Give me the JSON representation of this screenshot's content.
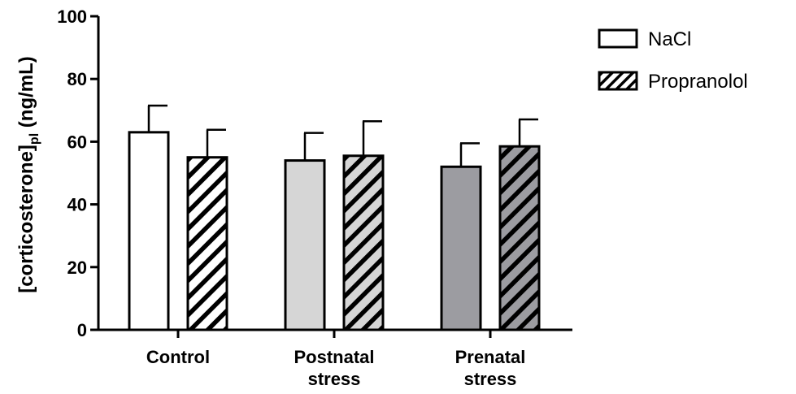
{
  "chart_data": {
    "type": "bar",
    "title": "",
    "ylabel": {
      "main": "[corticosterone]",
      "subscript": "pl",
      "unit": " (ng/mL)"
    },
    "xlabel": "",
    "ylim": [
      0,
      100
    ],
    "yticks": [
      "0",
      "20",
      "40",
      "60",
      "80",
      "100"
    ],
    "categories": [
      {
        "lines": [
          "Control"
        ]
      },
      {
        "lines": [
          "Postnatal",
          "stress"
        ]
      },
      {
        "lines": [
          "Prenatal",
          "stress"
        ]
      }
    ],
    "series": [
      {
        "name": "NaCl",
        "pattern": "solid",
        "values": [
          63,
          54,
          52
        ],
        "errors": [
          8.5,
          8.8,
          7.5
        ]
      },
      {
        "name": "Propranolol",
        "pattern": "hatched",
        "values": [
          55,
          55.5,
          58.5
        ],
        "errors": [
          8.8,
          11,
          8.6
        ]
      }
    ],
    "category_fills": [
      "#ffffff",
      "#d6d6d6",
      "#9c9ca1"
    ],
    "legend_position": "top-right",
    "grid": false
  }
}
